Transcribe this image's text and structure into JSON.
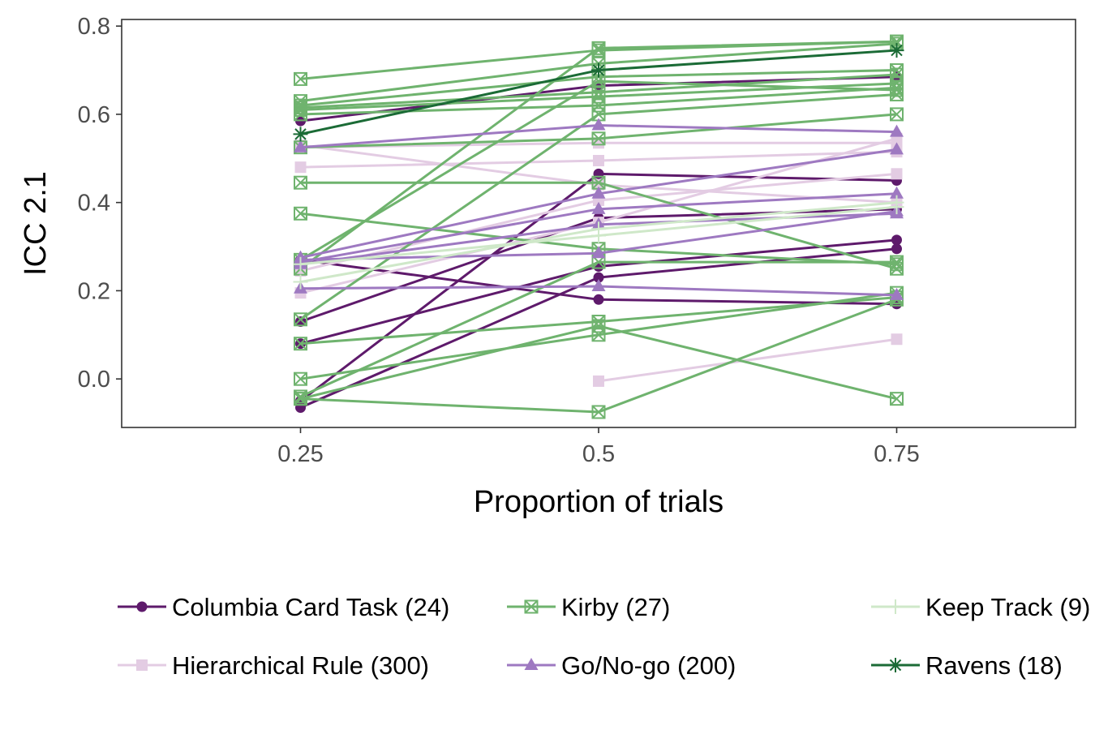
{
  "chart_data": {
    "type": "line",
    "title": "",
    "xlabel": "Proportion of trials",
    "ylabel": "ICC 2.1",
    "x_ticks": [
      "0.25",
      "0.5",
      "0.75"
    ],
    "y_ticks": [
      "0.0",
      "0.2",
      "0.4",
      "0.6",
      "0.8"
    ],
    "xlim": [
      0.1,
      0.9
    ],
    "ylim": [
      -0.11,
      0.815
    ],
    "grid": false,
    "legend_position": "bottom",
    "x": [
      0.25,
      0.5,
      0.75
    ],
    "groups": [
      {
        "name": "Columbia Card Task (24)",
        "color": "#5e1a6b",
        "marker": "circle",
        "lines": [
          [
            0.585,
            0.665,
            0.685
          ],
          [
            0.27,
            0.18,
            0.17
          ],
          [
            0.13,
            0.365,
            0.385
          ],
          [
            0.08,
            0.255,
            0.315
          ],
          [
            -0.05,
            0.465,
            0.45
          ],
          [
            -0.065,
            0.23,
            0.295
          ]
        ]
      },
      {
        "name": "Hierarchical Rule (300)",
        "color": "#e3cce3",
        "marker": "square",
        "lines": [
          [
            0.525,
            0.535,
            0.535
          ],
          [
            0.48,
            0.495,
            0.515
          ],
          [
            0.53,
            0.44,
            0.4
          ],
          [
            0.245,
            0.405,
            0.465
          ],
          [
            0.195,
            0.355,
            0.545
          ],
          [
            null,
            -0.005,
            0.09
          ]
        ]
      },
      {
        "name": "Kirby (27)",
        "color": "#6fb36e",
        "marker": "square-x",
        "lines": [
          [
            0.68,
            0.745,
            0.765
          ],
          [
            0.63,
            0.715,
            0.76
          ],
          [
            0.62,
            0.685,
            0.7
          ],
          [
            0.615,
            0.65,
            0.69
          ],
          [
            0.61,
            0.64,
            0.67
          ],
          [
            0.6,
            0.62,
            0.66
          ],
          [
            0.27,
            0.675,
            0.655
          ],
          [
            0.25,
            0.75,
            0.765
          ],
          [
            0.135,
            0.6,
            0.645
          ],
          [
            0.525,
            0.545,
            0.6
          ],
          [
            0.445,
            0.445,
            0.25
          ],
          [
            0.375,
            0.295,
            0.26
          ],
          [
            0.08,
            0.13,
            0.185
          ],
          [
            0.0,
            0.1,
            0.195
          ],
          [
            -0.04,
            0.265,
            0.265
          ],
          [
            -0.045,
            0.12,
            -0.045
          ],
          [
            -0.045,
            -0.075,
            0.18
          ]
        ]
      },
      {
        "name": "Go/No-go (200)",
        "color": "#9e79c1",
        "marker": "triangle",
        "lines": [
          [
            0.525,
            0.575,
            0.56
          ],
          [
            0.275,
            0.42,
            0.52
          ],
          [
            0.265,
            0.385,
            0.42
          ],
          [
            0.26,
            0.35,
            0.375
          ],
          [
            0.27,
            0.285,
            0.38
          ],
          [
            0.205,
            0.21,
            0.19
          ]
        ]
      },
      {
        "name": "Keep Track (9)",
        "color": "#cfe8c9",
        "marker": "plus",
        "lines": [
          [
            0.26,
            0.325,
            0.39
          ],
          [
            0.22,
            0.34,
            0.4
          ]
        ]
      },
      {
        "name": "Ravens (18)",
        "color": "#1b6b36",
        "marker": "asterisk",
        "lines": [
          [
            0.555,
            0.7,
            0.745
          ]
        ]
      }
    ]
  }
}
